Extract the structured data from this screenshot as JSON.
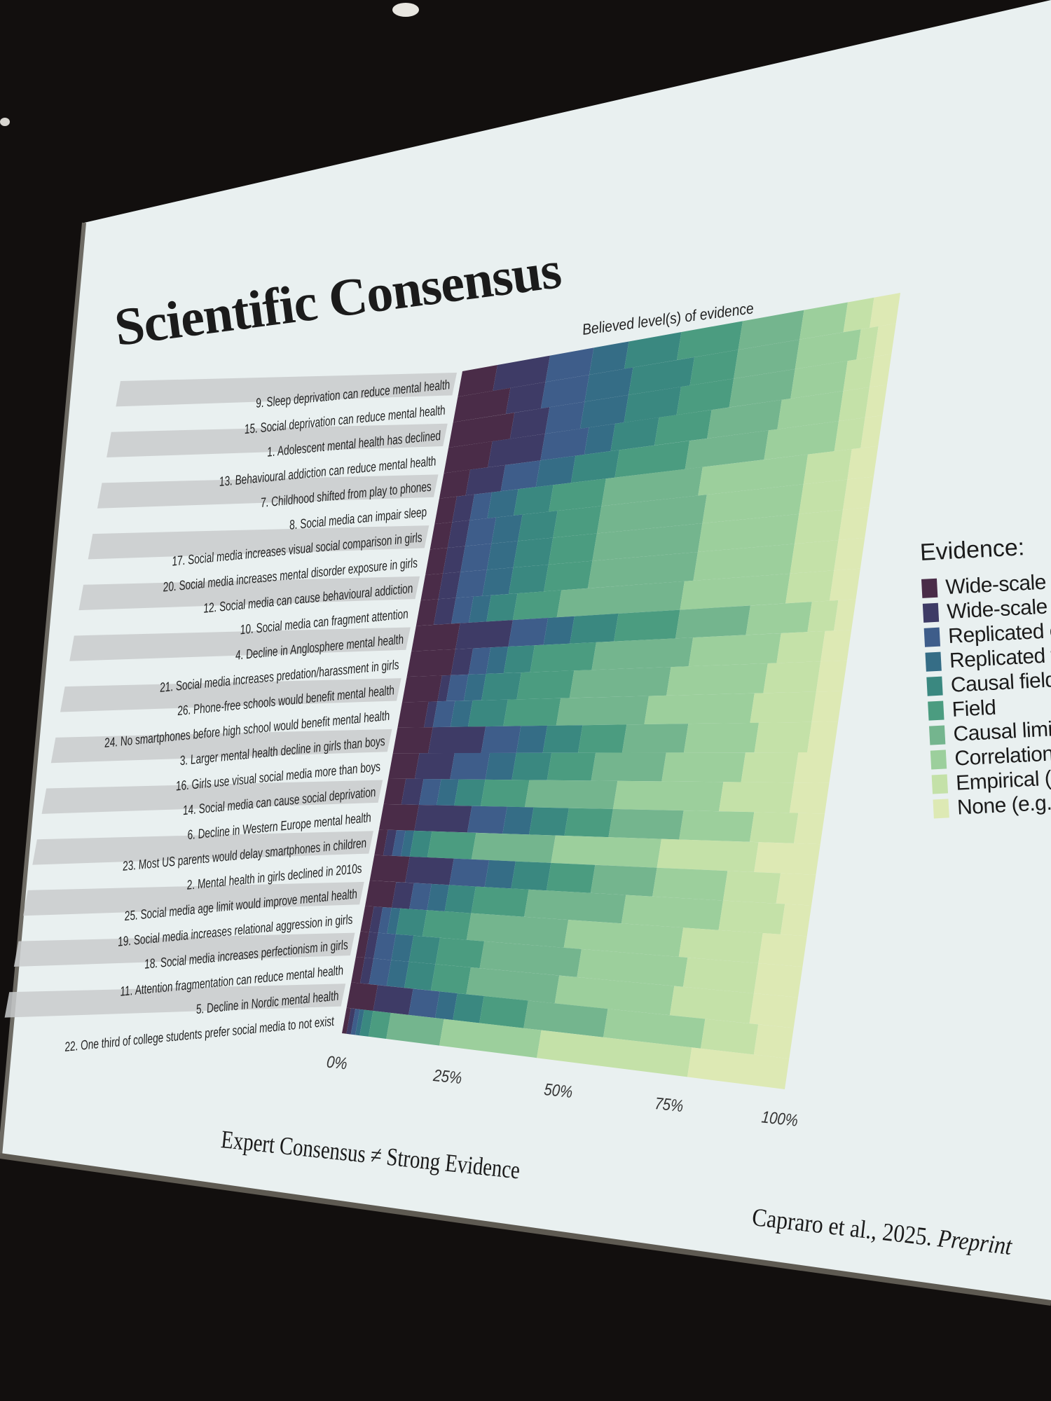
{
  "slide": {
    "title": "Scientific Consensus",
    "footer": "Expert Consensus ≠ Strong Evidence",
    "citation_main": "Capraro et al., 2025. ",
    "citation_italic": "Preprint"
  },
  "legend": {
    "title": "Evidence:",
    "items": [
      {
        "label": "Wide-scale ca",
        "color": "#4a2c48"
      },
      {
        "label": "Wide-scale",
        "color": "#3e3b66"
      },
      {
        "label": "Replicated caus",
        "color": "#3e5d8a"
      },
      {
        "label": "Replicated field",
        "color": "#356d86"
      },
      {
        "label": "Causal field",
        "color": "#3a8880"
      },
      {
        "label": "Field",
        "color": "#4b9c80"
      },
      {
        "label": "Causal limited",
        "color": "#74b58e"
      },
      {
        "label": "Correlational",
        "color": "#9ccf9c"
      },
      {
        "label": "Empirical (e.g., lat",
        "color": "#c4e1a8"
      },
      {
        "label": "None (e.g., opinior",
        "color": "#dde9b4"
      }
    ]
  },
  "chart_data": {
    "type": "bar",
    "orientation": "horizontal",
    "stacked": true,
    "title": "Believed level(s) of evidence",
    "xticks": [
      "0%",
      "25%",
      "50%",
      "75%",
      "100%"
    ],
    "xlim": [
      0,
      100
    ],
    "categories": [
      "9. Sleep deprivation can reduce mental health",
      "15. Social deprivation can reduce mental health",
      "1. Adolescent mental health has declined",
      "13. Behavioural addiction can reduce mental health",
      "7. Childhood shifted from play to phones",
      "8. Social media can impair sleep",
      "17. Social media increases visual social comparison in girls",
      "20. Social media increases mental disorder exposure in girls",
      "12. Social media can cause behavioural addiction",
      "10. Social media can fragment attention",
      "4. Decline in Anglosphere mental health",
      "21. Social media increases predation/harassment in girls",
      "26. Phone-free schools would benefit mental health",
      "24. No smartphones before high school would benefit mental health",
      "3. Larger mental health decline in girls than boys",
      "16. Girls use visual social media more than boys",
      "14. Social media can cause social deprivation",
      "6. Decline in Western Europe mental health",
      "23. Most US parents would delay smartphones in children",
      "2. Mental health in girls declined in 2010s",
      "25. Social media age limit would improve mental health",
      "19. Social media increases relational aggression in girls",
      "18. Social media increases perfectionism in girls",
      "11. Attention fragmentation can reduce mental health",
      "5. Decline in Nordic mental health",
      "22. One third of college students prefer social media to not exist"
    ],
    "series_labels": [
      "Wide-scale ca",
      "Wide-scale",
      "Replicated caus",
      "Replicated field",
      "Causal field",
      "Field",
      "Causal limited",
      "Correlational",
      "Empirical (e.g., lat",
      "None (e.g., opinior"
    ],
    "values": [
      [
        8,
        12,
        10,
        8,
        12,
        14,
        14,
        10,
        6,
        6
      ],
      [
        12,
        8,
        10,
        10,
        14,
        10,
        14,
        14,
        4,
        4
      ],
      [
        14,
        8,
        8,
        10,
        12,
        12,
        14,
        12,
        6,
        4
      ],
      [
        10,
        12,
        10,
        6,
        10,
        12,
        16,
        14,
        6,
        4
      ],
      [
        6,
        8,
        8,
        8,
        10,
        16,
        18,
        16,
        6,
        4
      ],
      [
        4,
        4,
        4,
        6,
        8,
        12,
        22,
        24,
        10,
        6
      ],
      [
        4,
        4,
        6,
        6,
        8,
        10,
        24,
        22,
        10,
        6
      ],
      [
        4,
        4,
        6,
        6,
        8,
        10,
        24,
        22,
        10,
        6
      ],
      [
        4,
        4,
        6,
        6,
        8,
        10,
        24,
        22,
        10,
        6
      ],
      [
        4,
        4,
        4,
        4,
        6,
        10,
        28,
        24,
        10,
        6
      ],
      [
        10,
        12,
        8,
        6,
        10,
        14,
        16,
        14,
        6,
        4
      ],
      [
        10,
        4,
        4,
        4,
        6,
        14,
        22,
        20,
        10,
        6
      ],
      [
        8,
        2,
        4,
        4,
        8,
        12,
        22,
        22,
        12,
        6
      ],
      [
        6,
        2,
        4,
        4,
        8,
        12,
        20,
        24,
        14,
        6
      ],
      [
        8,
        12,
        8,
        6,
        8,
        10,
        14,
        16,
        12,
        6
      ],
      [
        6,
        8,
        8,
        6,
        8,
        10,
        16,
        18,
        12,
        8
      ],
      [
        4,
        4,
        4,
        4,
        6,
        10,
        20,
        24,
        16,
        8
      ],
      [
        8,
        12,
        8,
        6,
        8,
        10,
        16,
        16,
        10,
        6
      ],
      [
        2,
        2,
        2,
        2,
        4,
        10,
        18,
        24,
        22,
        14
      ],
      [
        8,
        10,
        8,
        6,
        8,
        10,
        14,
        16,
        12,
        8
      ],
      [
        6,
        4,
        4,
        4,
        6,
        12,
        22,
        22,
        14,
        6
      ],
      [
        2,
        2,
        2,
        2,
        6,
        10,
        22,
        26,
        18,
        10
      ],
      [
        2,
        2,
        4,
        4,
        6,
        10,
        22,
        24,
        16,
        10
      ],
      [
        2,
        2,
        4,
        4,
        6,
        8,
        20,
        26,
        18,
        10
      ],
      [
        6,
        8,
        6,
        4,
        6,
        10,
        18,
        22,
        12,
        8
      ],
      [
        1,
        1,
        1,
        1,
        2,
        4,
        12,
        22,
        34,
        22
      ]
    ]
  }
}
